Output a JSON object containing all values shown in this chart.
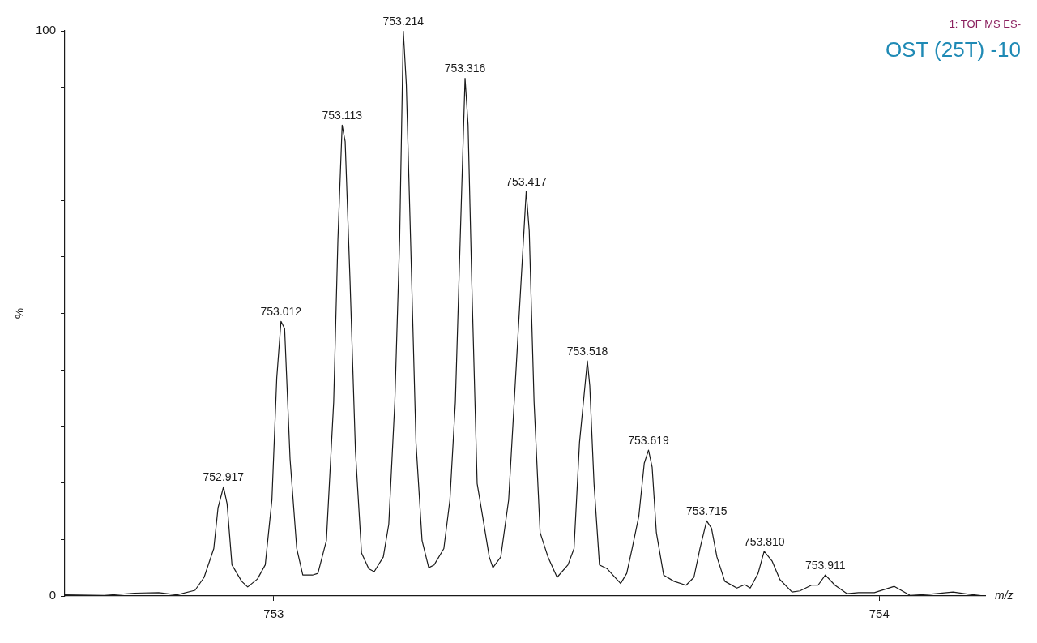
{
  "chart_data": {
    "type": "line",
    "title": "OST (25T) -10",
    "subtitle": "1: TOF MS ES-",
    "xlabel": "m/z",
    "ylabel": "%",
    "xlim": [
      752.655,
      754.175
    ],
    "xticks": [
      753,
      754
    ],
    "ylim": [
      0,
      100
    ],
    "yticks": [
      0,
      {
        "value": 10,
        "label": null
      },
      {
        "value": 20,
        "label": null
      },
      {
        "value": 30,
        "label": null
      },
      {
        "value": 40,
        "label": null
      },
      {
        "value": 50,
        "label": null
      },
      {
        "value": 60,
        "label": null
      },
      {
        "value": 70,
        "label": null
      },
      {
        "value": 80,
        "label": null
      },
      {
        "value": 90,
        "label": null
      },
      100
    ],
    "grid": false,
    "legend": false,
    "marker": "none",
    "line_style": "solid",
    "series": [
      {
        "color": "#1a1a1a",
        "x": [
          752.655,
          752.72,
          752.77,
          752.81,
          752.84,
          752.87,
          752.885,
          752.901,
          752.908,
          752.917,
          752.923,
          752.931,
          752.947,
          752.957,
          752.973,
          752.986,
          752.997,
          753.005,
          753.012,
          753.018,
          753.027,
          753.038,
          753.048,
          753.064,
          753.073,
          753.087,
          753.099,
          753.106,
          753.113,
          753.118,
          753.126,
          753.135,
          753.145,
          753.157,
          753.166,
          753.181,
          753.19,
          753.2,
          753.208,
          753.214,
          753.219,
          753.226,
          753.235,
          753.245,
          753.256,
          753.265,
          753.281,
          753.291,
          753.3,
          753.308,
          753.316,
          753.321,
          753.327,
          753.336,
          753.345,
          753.356,
          753.362,
          753.375,
          753.388,
          753.401,
          753.417,
          753.422,
          753.43,
          753.44,
          753.453,
          753.468,
          753.486,
          753.496,
          753.505,
          753.518,
          753.522,
          753.529,
          753.538,
          753.551,
          753.561,
          753.573,
          753.583,
          753.592,
          753.603,
          753.612,
          753.619,
          753.625,
          753.632,
          753.644,
          753.661,
          753.681,
          753.694,
          753.704,
          753.715,
          753.723,
          753.732,
          753.745,
          753.765,
          753.778,
          753.787,
          753.8,
          753.81,
          753.823,
          753.836,
          753.856,
          753.869,
          753.888,
          753.899,
          753.911,
          753.927,
          753.947,
          753.966,
          753.992,
          754.025,
          754.051,
          754.083,
          754.122,
          754.148,
          754.174
        ],
        "values": [
          0.2,
          0.1,
          0.5,
          0.6,
          0.2,
          1.0,
          3.3,
          8.4,
          15.6,
          19.3,
          16.3,
          5.5,
          2.6,
          1.6,
          3.0,
          5.5,
          17,
          38.6,
          48.6,
          47.3,
          24.2,
          8.4,
          3.7,
          3.7,
          4.0,
          9.8,
          34.3,
          63.1,
          83.3,
          80.4,
          55.9,
          25.6,
          7.6,
          4.8,
          4.3,
          6.9,
          12.7,
          34.3,
          63.1,
          100,
          90.5,
          63.1,
          27.1,
          9.8,
          5.0,
          5.5,
          8.4,
          17,
          34.3,
          63.1,
          91.6,
          83.3,
          55.9,
          19.9,
          14.1,
          6.9,
          5.0,
          6.9,
          17,
          41.5,
          71.6,
          64.6,
          34.3,
          11.2,
          6.9,
          3.3,
          5.5,
          8.4,
          27.1,
          41.6,
          37.2,
          19.9,
          5.5,
          4.8,
          3.6,
          2.2,
          4.0,
          8.4,
          14.1,
          23.5,
          25.8,
          22.8,
          11.2,
          3.7,
          2.6,
          1.9,
          3.3,
          8.4,
          13.3,
          12.0,
          6.9,
          2.6,
          1.4,
          2.0,
          1.4,
          4.0,
          7.9,
          6.2,
          2.9,
          0.7,
          0.9,
          1.9,
          1.9,
          3.7,
          1.9,
          0.4,
          0.6,
          0.6,
          1.7,
          0.1,
          0.3,
          0.7,
          0.3,
          0
        ]
      }
    ],
    "annotations": [
      {
        "text": "752.917",
        "x": 752.917,
        "y": 19.3
      },
      {
        "text": "753.012",
        "x": 753.012,
        "y": 48.6
      },
      {
        "text": "753.113",
        "x": 753.113,
        "y": 83.3
      },
      {
        "text": "753.214",
        "x": 753.214,
        "y": 100
      },
      {
        "text": "753.316",
        "x": 753.316,
        "y": 91.6
      },
      {
        "text": "753.417",
        "x": 753.417,
        "y": 71.6
      },
      {
        "text": "753.518",
        "x": 753.518,
        "y": 41.6
      },
      {
        "text": "753.619",
        "x": 753.619,
        "y": 25.8
      },
      {
        "text": "753.715",
        "x": 753.715,
        "y": 13.3
      },
      {
        "text": "753.810",
        "x": 753.81,
        "y": 7.9
      },
      {
        "text": "753.911",
        "x": 753.911,
        "y": 3.7
      }
    ]
  }
}
